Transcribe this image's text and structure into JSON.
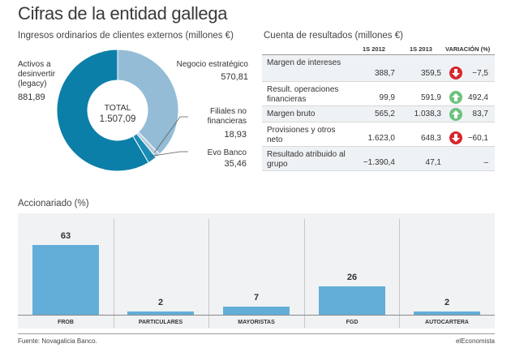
{
  "title": "Cifras de la entidad gallega",
  "colors": {
    "dark_blue": "#0c7fa8",
    "light_blue": "#94bcd6",
    "pale_blue": "#b6ccdb",
    "bar_blue": "#63aed8",
    "down_red": "#d7262e",
    "up_green": "#6dc27e"
  },
  "footer": {
    "source": "Fuente: Novagalicia Banco.",
    "brand": "elEconomista"
  },
  "chart_data": [
    {
      "type": "pie",
      "title": "Ingresos ordinarios de clientes externos  (millones €)",
      "total_label": "TOTAL",
      "total_value": "1.507,09",
      "slices": [
        {
          "name": "Negocio estratégico",
          "value": 570.81,
          "display": "570,81",
          "color": "#94bcd6"
        },
        {
          "name": "Filiales no financieras",
          "value": 18.93,
          "display": "18,93",
          "color": "#b6ccdb"
        },
        {
          "name": "Evo Banco",
          "value": 35.46,
          "display": "35,46",
          "color": "#1b8cb3"
        },
        {
          "name": "Activos a desinvertir (legacy)",
          "value": 881.89,
          "display": "881,89",
          "color": "#0c7fa8"
        }
      ]
    },
    {
      "type": "table",
      "title": "Cuenta de resultados (millones €)",
      "columns": [
        "",
        "1S 2012",
        "1S 2013",
        "VARIACIÓN (%)"
      ],
      "rows": [
        {
          "label": "Margen de intereses",
          "v2012": "388,7",
          "v2013": "359,5",
          "variation": "−7,5",
          "trend": "down"
        },
        {
          "label": "Result. operaciones financieras",
          "v2012": "99,9",
          "v2013": "591,9",
          "variation": "492,4",
          "trend": "up"
        },
        {
          "label": "Margen bruto",
          "v2012": "565,2",
          "v2013": "1.038,3",
          "variation": "83,7",
          "trend": "up"
        },
        {
          "label": "Provisiones y otros neto",
          "v2012": "1.623,0",
          "v2013": "648,3",
          "variation": "−60,1",
          "trend": "down"
        },
        {
          "label": "Resultado atribuido al grupo",
          "v2012": "−1.390,4",
          "v2013": "47,1",
          "variation": "–",
          "trend": "none"
        }
      ]
    },
    {
      "type": "bar",
      "title": "Accionariado  (%)",
      "categories": [
        "FROB",
        "PARTICULARES",
        "MAYORISTAS",
        "FGD",
        "AUTOCARTERA"
      ],
      "values": [
        63,
        2,
        7,
        26,
        2
      ],
      "ylim": [
        0,
        63
      ]
    }
  ]
}
